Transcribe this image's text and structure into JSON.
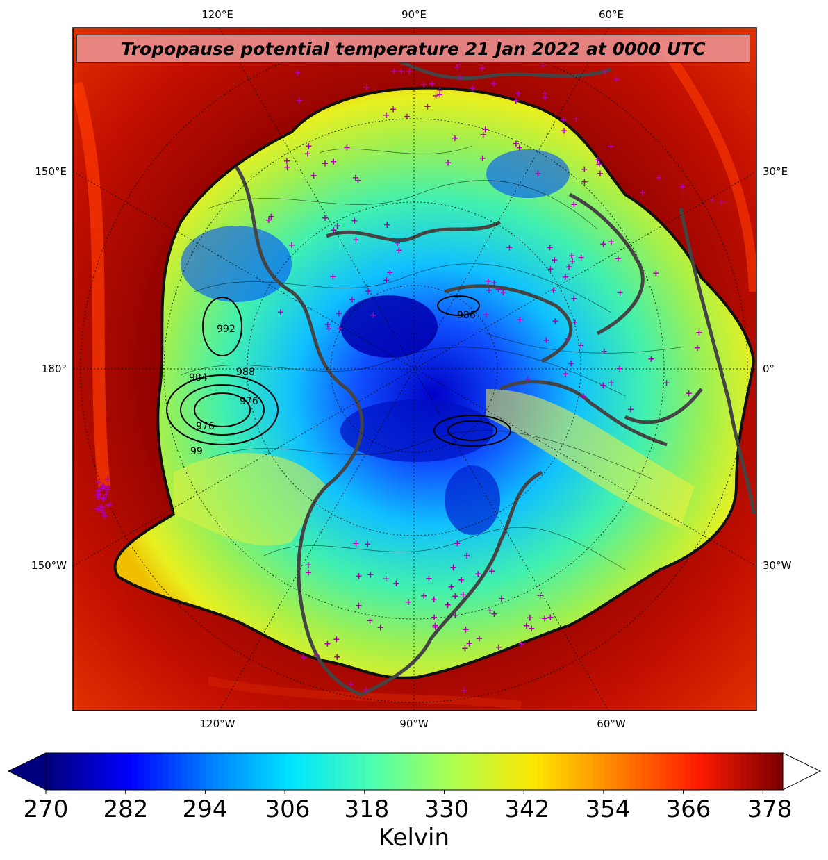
{
  "title": "Tropopause potential temperature 21 Jan 2022 at 0000 UTC",
  "map": {
    "projection": "north-polar-stereographic",
    "field": "tropopause potential temperature",
    "contour_overlay": "sea level pressure (hPa)",
    "pressure_labels": [
      "992",
      "984",
      "988",
      "976",
      "976",
      "99",
      "986"
    ],
    "station_marker_color": "#b000b0",
    "coastline_color": "#444444"
  },
  "axes": {
    "top": [
      "120°E",
      "90°E",
      "60°E"
    ],
    "bottom": [
      "120°W",
      "90°W",
      "60°W"
    ],
    "left": [
      "150°E",
      "180°",
      "150°W"
    ],
    "right": [
      "30°E",
      "0°",
      "30°W"
    ]
  },
  "colorbar": {
    "ticks": [
      "270",
      "282",
      "294",
      "306",
      "318",
      "330",
      "342",
      "354",
      "366",
      "378"
    ],
    "label": "Kelvin",
    "range": [
      270,
      381
    ],
    "colors": [
      "#00007f",
      "#0000ff",
      "#0080ff",
      "#00e5ff",
      "#4dffb0",
      "#b0ff4d",
      "#ffe500",
      "#ff8000",
      "#ff1a00",
      "#7f0000"
    ]
  }
}
